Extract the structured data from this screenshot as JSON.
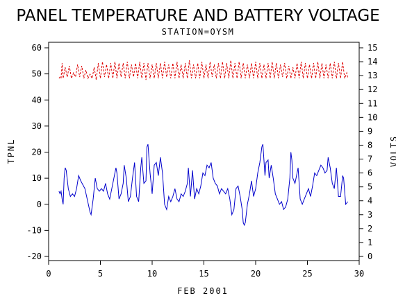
{
  "chart_data": {
    "type": "line",
    "title": "PANEL TEMPERATURE AND BATTERY VOLTAGE",
    "subtitle": "STATION=OYSM",
    "xlabel": "FEB 2001",
    "ylabel_left": "TPNL",
    "ylabel_right": "VOLTS",
    "xlim": [
      0,
      30
    ],
    "ylim_left": [
      -20,
      60
    ],
    "ylim_right": [
      0,
      15
    ],
    "x_ticks": [
      0,
      5,
      10,
      15,
      20,
      25,
      30
    ],
    "y_left_ticks": [
      -20,
      -10,
      0,
      10,
      20,
      30,
      40,
      50,
      60
    ],
    "y_right_ticks": [
      0,
      1,
      2,
      3,
      4,
      5,
      6,
      7,
      8,
      9,
      10,
      11,
      12,
      13,
      14,
      15
    ],
    "grid": false,
    "colors": {
      "temperature": "#0000cc",
      "voltage": "#dd0000",
      "axes": "#000000"
    },
    "series": [
      {
        "axis": "left",
        "values": [
          [
            1.0,
            5
          ],
          [
            1.1,
            4
          ],
          [
            1.2,
            5
          ],
          [
            1.3,
            2
          ],
          [
            1.4,
            0
          ],
          [
            1.5,
            10
          ],
          [
            1.6,
            14
          ],
          [
            1.7,
            13
          ],
          [
            1.9,
            6
          ],
          [
            2.1,
            3
          ],
          [
            2.3,
            4
          ],
          [
            2.5,
            3
          ],
          [
            2.7,
            6
          ],
          [
            2.9,
            11
          ],
          [
            3.1,
            9
          ],
          [
            3.5,
            6
          ],
          [
            4.0,
            -3
          ],
          [
            4.1,
            -4
          ],
          [
            4.3,
            2
          ],
          [
            4.5,
            10
          ],
          [
            4.7,
            6
          ],
          [
            4.9,
            5
          ],
          [
            5.1,
            6
          ],
          [
            5.3,
            5
          ],
          [
            5.5,
            8
          ],
          [
            5.7,
            4
          ],
          [
            5.9,
            2
          ],
          [
            6.1,
            6
          ],
          [
            6.3,
            10
          ],
          [
            6.5,
            14
          ],
          [
            6.6,
            12
          ],
          [
            6.8,
            2
          ],
          [
            7.0,
            4
          ],
          [
            7.2,
            8
          ],
          [
            7.3,
            15
          ],
          [
            7.5,
            10
          ],
          [
            7.7,
            1
          ],
          [
            7.9,
            3
          ],
          [
            8.1,
            10
          ],
          [
            8.3,
            16
          ],
          [
            8.5,
            3
          ],
          [
            8.7,
            1
          ],
          [
            8.9,
            14
          ],
          [
            9.0,
            18
          ],
          [
            9.2,
            8
          ],
          [
            9.4,
            9
          ],
          [
            9.5,
            22
          ],
          [
            9.6,
            23
          ],
          [
            9.8,
            12
          ],
          [
            10.0,
            4
          ],
          [
            10.2,
            15
          ],
          [
            10.4,
            16
          ],
          [
            10.6,
            11
          ],
          [
            10.8,
            18
          ],
          [
            11.0,
            12
          ],
          [
            11.2,
            0
          ],
          [
            11.4,
            -2
          ],
          [
            11.6,
            3
          ],
          [
            11.8,
            1
          ],
          [
            12.0,
            3
          ],
          [
            12.2,
            6
          ],
          [
            12.4,
            2
          ],
          [
            12.6,
            1
          ],
          [
            12.8,
            4
          ],
          [
            13.0,
            3
          ],
          [
            13.2,
            5
          ],
          [
            13.4,
            8
          ],
          [
            13.5,
            14
          ],
          [
            13.7,
            3
          ],
          [
            13.9,
            13
          ],
          [
            14.1,
            2
          ],
          [
            14.3,
            6
          ],
          [
            14.5,
            4
          ],
          [
            14.7,
            7
          ],
          [
            14.9,
            12
          ],
          [
            15.1,
            11
          ],
          [
            15.3,
            15
          ],
          [
            15.5,
            14
          ],
          [
            15.7,
            16
          ],
          [
            15.9,
            10
          ],
          [
            16.1,
            8
          ],
          [
            16.3,
            7
          ],
          [
            16.5,
            4
          ],
          [
            16.7,
            6
          ],
          [
            16.9,
            5
          ],
          [
            17.1,
            4
          ],
          [
            17.3,
            6
          ],
          [
            17.5,
            2
          ],
          [
            17.7,
            -4
          ],
          [
            17.9,
            -2
          ],
          [
            18.1,
            6
          ],
          [
            18.3,
            7
          ],
          [
            18.5,
            3
          ],
          [
            18.7,
            -2
          ],
          [
            18.8,
            -7
          ],
          [
            18.9,
            -8
          ],
          [
            19.0,
            -7
          ],
          [
            19.2,
            0
          ],
          [
            19.4,
            4
          ],
          [
            19.6,
            9
          ],
          [
            19.8,
            3
          ],
          [
            20.0,
            6
          ],
          [
            20.2,
            12
          ],
          [
            20.4,
            16
          ],
          [
            20.6,
            22
          ],
          [
            20.7,
            23
          ],
          [
            20.8,
            17
          ],
          [
            20.9,
            11
          ],
          [
            21.0,
            16
          ],
          [
            21.2,
            17
          ],
          [
            21.3,
            10
          ],
          [
            21.5,
            15
          ],
          [
            21.7,
            10
          ],
          [
            21.9,
            4
          ],
          [
            22.1,
            2
          ],
          [
            22.3,
            0
          ],
          [
            22.5,
            1
          ],
          [
            22.7,
            -2
          ],
          [
            22.9,
            -1
          ],
          [
            23.1,
            2
          ],
          [
            23.3,
            10
          ],
          [
            23.4,
            20
          ],
          [
            23.5,
            17
          ],
          [
            23.6,
            10
          ],
          [
            23.8,
            8
          ],
          [
            24.0,
            12
          ],
          [
            24.1,
            14
          ],
          [
            24.3,
            2
          ],
          [
            24.5,
            0
          ],
          [
            24.7,
            2
          ],
          [
            24.9,
            4
          ],
          [
            25.1,
            6
          ],
          [
            25.3,
            3
          ],
          [
            25.5,
            7
          ],
          [
            25.7,
            12
          ],
          [
            25.9,
            11
          ],
          [
            26.1,
            13
          ],
          [
            26.3,
            15
          ],
          [
            26.5,
            14
          ],
          [
            26.7,
            12
          ],
          [
            26.9,
            13
          ],
          [
            27.0,
            18
          ],
          [
            27.2,
            14
          ],
          [
            27.4,
            8
          ],
          [
            27.6,
            6
          ],
          [
            27.8,
            14
          ],
          [
            28.0,
            3
          ],
          [
            28.2,
            3
          ],
          [
            28.4,
            11
          ],
          [
            28.5,
            10
          ],
          [
            28.7,
            0
          ],
          [
            28.9,
            1
          ]
        ]
      },
      {
        "axis": "right",
        "values": [
          [
            1.0,
            12.8
          ],
          [
            1.1,
            12.9
          ],
          [
            1.2,
            12.8
          ],
          [
            1.3,
            13.9
          ],
          [
            1.4,
            12.8
          ],
          [
            1.6,
            13.6
          ],
          [
            1.8,
            12.9
          ],
          [
            2.0,
            13.7
          ],
          [
            2.2,
            12.8
          ],
          [
            2.4,
            13.2
          ],
          [
            2.6,
            12.9
          ],
          [
            2.8,
            13.8
          ],
          [
            3.0,
            12.9
          ],
          [
            3.2,
            13.7
          ],
          [
            3.4,
            12.8
          ],
          [
            3.6,
            13.4
          ],
          [
            3.8,
            12.8
          ],
          [
            4.0,
            13.1
          ],
          [
            4.2,
            12.8
          ],
          [
            4.4,
            13.6
          ],
          [
            4.6,
            12.7
          ],
          [
            4.8,
            13.9
          ],
          [
            5.0,
            12.8
          ],
          [
            5.2,
            14.0
          ],
          [
            5.4,
            12.9
          ],
          [
            5.6,
            13.8
          ],
          [
            5.8,
            12.8
          ],
          [
            6.0,
            13.9
          ],
          [
            6.2,
            12.8
          ],
          [
            6.4,
            14.0
          ],
          [
            6.6,
            12.8
          ],
          [
            6.8,
            13.9
          ],
          [
            7.0,
            12.9
          ],
          [
            7.2,
            13.9
          ],
          [
            7.4,
            12.8
          ],
          [
            7.6,
            14.0
          ],
          [
            7.8,
            12.8
          ],
          [
            8.0,
            13.8
          ],
          [
            8.2,
            12.9
          ],
          [
            8.4,
            13.9
          ],
          [
            8.6,
            12.8
          ],
          [
            8.8,
            14.0
          ],
          [
            9.0,
            12.8
          ],
          [
            9.2,
            13.9
          ],
          [
            9.4,
            12.7
          ],
          [
            9.6,
            13.9
          ],
          [
            9.8,
            12.8
          ],
          [
            10.0,
            13.8
          ],
          [
            10.2,
            12.8
          ],
          [
            10.4,
            13.9
          ],
          [
            10.6,
            12.8
          ],
          [
            10.8,
            13.9
          ],
          [
            11.0,
            12.8
          ],
          [
            11.2,
            14.0
          ],
          [
            11.4,
            12.9
          ],
          [
            11.6,
            13.8
          ],
          [
            11.8,
            12.8
          ],
          [
            12.0,
            13.9
          ],
          [
            12.2,
            12.8
          ],
          [
            12.4,
            14.0
          ],
          [
            12.6,
            12.8
          ],
          [
            12.8,
            13.8
          ],
          [
            13.0,
            12.8
          ],
          [
            13.2,
            13.9
          ],
          [
            13.4,
            12.8
          ],
          [
            13.6,
            14.1
          ],
          [
            13.8,
            12.8
          ],
          [
            14.0,
            13.8
          ],
          [
            14.2,
            12.8
          ],
          [
            14.4,
            13.9
          ],
          [
            14.6,
            12.8
          ],
          [
            14.8,
            14.0
          ],
          [
            15.0,
            12.8
          ],
          [
            15.2,
            13.8
          ],
          [
            15.4,
            12.8
          ],
          [
            15.6,
            14.0
          ],
          [
            15.8,
            12.9
          ],
          [
            16.0,
            13.8
          ],
          [
            16.2,
            12.8
          ],
          [
            16.4,
            13.9
          ],
          [
            16.6,
            12.8
          ],
          [
            16.8,
            14.0
          ],
          [
            17.0,
            12.8
          ],
          [
            17.2,
            13.9
          ],
          [
            17.4,
            12.8
          ],
          [
            17.6,
            14.1
          ],
          [
            17.8,
            12.8
          ],
          [
            18.0,
            13.9
          ],
          [
            18.2,
            12.8
          ],
          [
            18.4,
            14.0
          ],
          [
            18.6,
            12.8
          ],
          [
            18.8,
            13.9
          ],
          [
            19.0,
            12.8
          ],
          [
            19.2,
            13.8
          ],
          [
            19.4,
            12.8
          ],
          [
            19.6,
            13.9
          ],
          [
            19.8,
            12.8
          ],
          [
            20.0,
            14.0
          ],
          [
            20.2,
            12.8
          ],
          [
            20.4,
            13.9
          ],
          [
            20.6,
            12.8
          ],
          [
            20.8,
            13.8
          ],
          [
            21.0,
            12.8
          ],
          [
            21.2,
            13.9
          ],
          [
            21.4,
            12.8
          ],
          [
            21.6,
            14.0
          ],
          [
            21.8,
            12.8
          ],
          [
            22.0,
            13.9
          ],
          [
            22.2,
            12.8
          ],
          [
            22.4,
            13.8
          ],
          [
            22.6,
            12.9
          ],
          [
            22.8,
            13.9
          ],
          [
            23.0,
            12.8
          ],
          [
            23.2,
            13.7
          ],
          [
            23.4,
            12.8
          ],
          [
            23.6,
            13.6
          ],
          [
            23.8,
            12.8
          ],
          [
            24.0,
            13.9
          ],
          [
            24.2,
            12.8
          ],
          [
            24.4,
            14.0
          ],
          [
            24.6,
            12.8
          ],
          [
            24.8,
            13.9
          ],
          [
            25.0,
            12.8
          ],
          [
            25.2,
            13.8
          ],
          [
            25.4,
            12.8
          ],
          [
            25.6,
            13.9
          ],
          [
            25.8,
            12.8
          ],
          [
            26.0,
            14.0
          ],
          [
            26.2,
            12.8
          ],
          [
            26.4,
            13.9
          ],
          [
            26.6,
            12.8
          ],
          [
            26.8,
            13.8
          ],
          [
            27.0,
            12.8
          ],
          [
            27.2,
            13.9
          ],
          [
            27.4,
            12.8
          ],
          [
            27.6,
            14.0
          ],
          [
            27.8,
            12.8
          ],
          [
            28.0,
            13.9
          ],
          [
            28.2,
            12.8
          ],
          [
            28.4,
            14.0
          ],
          [
            28.6,
            12.8
          ],
          [
            28.8,
            13.2
          ],
          [
            28.9,
            12.8
          ]
        ]
      }
    ]
  }
}
